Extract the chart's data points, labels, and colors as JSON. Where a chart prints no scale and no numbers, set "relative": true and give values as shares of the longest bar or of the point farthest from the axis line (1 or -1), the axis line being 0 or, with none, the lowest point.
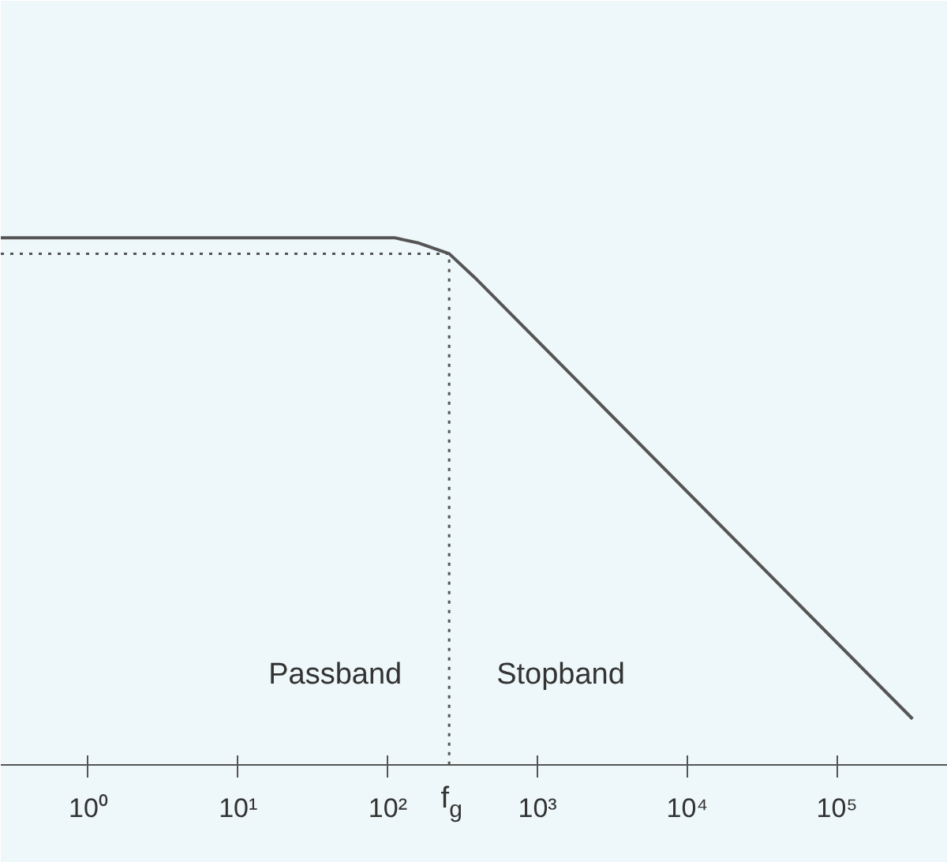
{
  "chart_data": {
    "type": "line",
    "relative": true,
    "log": "x",
    "x": [
      0.26,
      112,
      162,
      257,
      380,
      320000
    ],
    "series": [
      {
        "color": "#555555",
        "values": [
          1,
          1,
          0.99,
          0.97,
          0.925,
          0.087
        ]
      }
    ],
    "xlim": [
      0.26,
      550000
    ],
    "xticks": [
      {
        "value": 1,
        "label": "10⁰"
      },
      {
        "value": 10,
        "label": "10¹"
      },
      {
        "value": 100,
        "label": "10²"
      },
      {
        "value": 1000,
        "label": "10³"
      },
      {
        "value": 10000,
        "label": "10⁴"
      },
      {
        "value": 100000,
        "label": "10⁵"
      }
    ],
    "ref_lines": [
      {
        "axis": "y",
        "value": 0.97,
        "line_style": "dotted"
      },
      {
        "axis": "x",
        "value": 257,
        "label": "f$_{g}$",
        "line_style": "dotted"
      }
    ],
    "annotations": [
      "Passband",
      "Stopband"
    ],
    "grid": false,
    "marker": "none",
    "line_style": "solid"
  }
}
